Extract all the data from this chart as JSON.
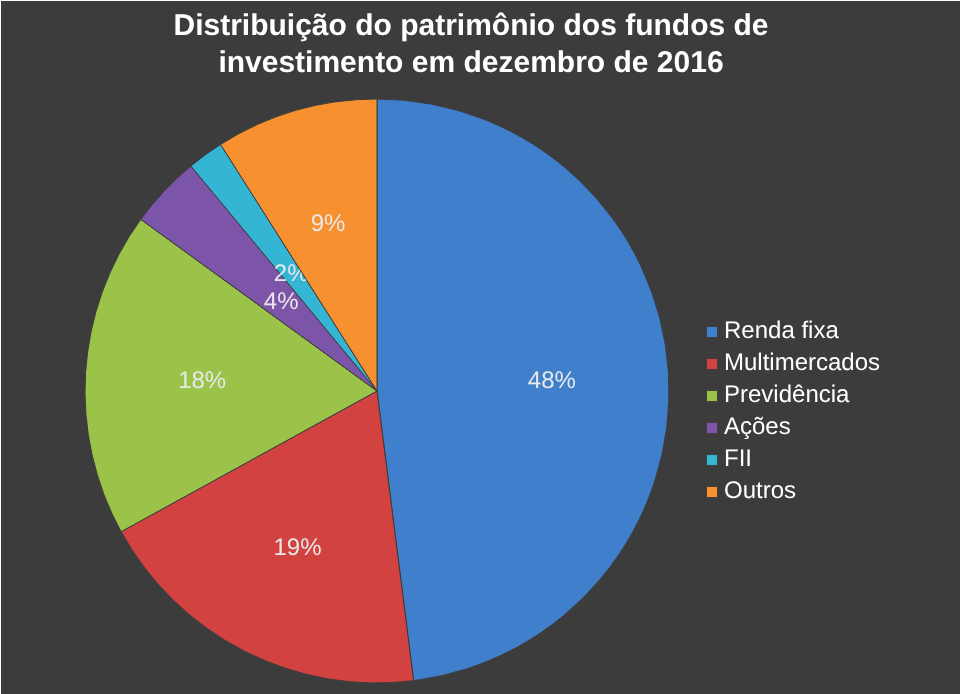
{
  "chart_data": {
    "type": "pie",
    "title": "Distribuição do patrimônio dos fundos de investimento em dezembro de 2016",
    "categories": [
      "Renda fixa",
      "Multimercados",
      "Previdência",
      "Ações",
      "FII",
      "Outros"
    ],
    "values": [
      48,
      19,
      18,
      4,
      2,
      9
    ],
    "colors": [
      "#3f7fcb",
      "#d14240",
      "#9bc34a",
      "#7d55a8",
      "#33b5d3",
      "#f7912f"
    ],
    "value_labels": [
      "48%",
      "19%",
      "18%",
      "4%",
      "2%",
      "9%"
    ],
    "legend": "right"
  }
}
